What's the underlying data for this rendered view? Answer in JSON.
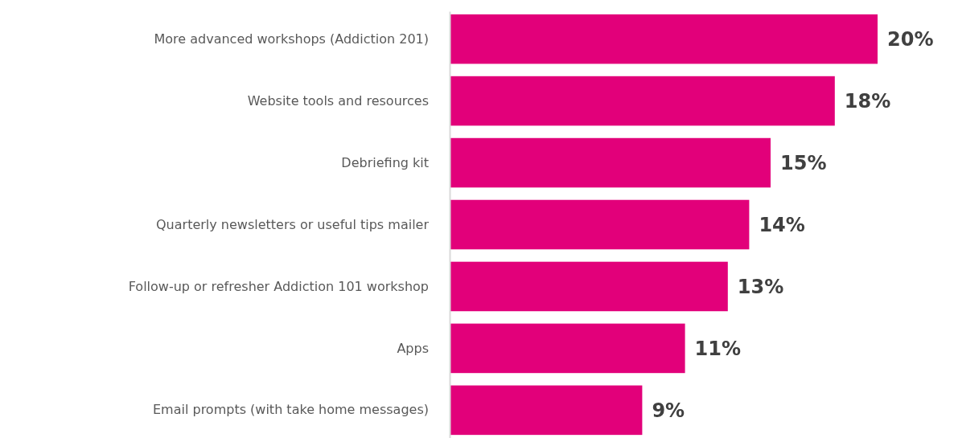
{
  "chart_data": {
    "type": "bar",
    "orientation": "horizontal",
    "categories": [
      "More advanced workshops (Addiction 201)",
      "Website tools and resources",
      "Debriefing kit",
      "Quarterly newsletters or useful tips mailer",
      "Follow-up or refresher Addiction 101 workshop",
      "Apps",
      "Email prompts (with take home messages)"
    ],
    "values": [
      20,
      18,
      15,
      14,
      13,
      11,
      9
    ],
    "value_labels": [
      "20%",
      "18%",
      "15%",
      "14%",
      "13%",
      "11%",
      "9%"
    ],
    "color": "#e2007a"
  }
}
